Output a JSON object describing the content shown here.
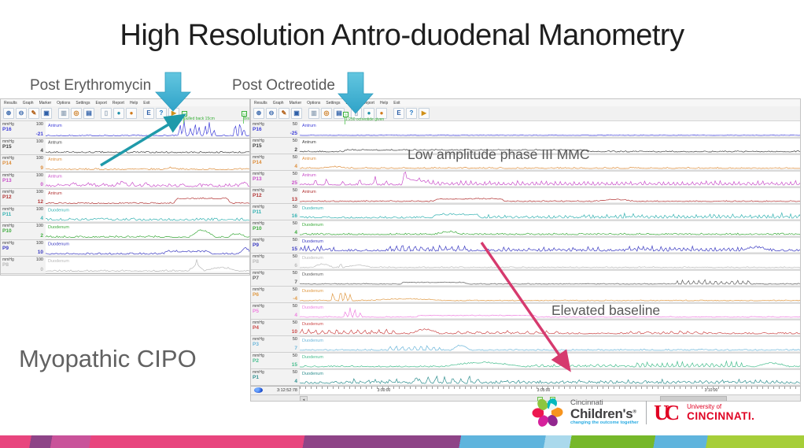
{
  "slide": {
    "title": "High Resolution Antro-duodenal Manometry",
    "left_caption": "Post Erythromycin",
    "right_caption": "Post Octreotide",
    "annotation_mmc": "Low amplitude phase III MMC",
    "annotation_baseline": "Elevated baseline",
    "diagnosis_label": "Myopathic CIPO"
  },
  "menu": {
    "items": [
      "Results",
      "Graph",
      "Marker",
      "Options",
      "Settings",
      "Export",
      "Report",
      "Help",
      "Exit"
    ]
  },
  "toolbar": {
    "icons": [
      {
        "name": "zoom-in-icon",
        "glyph": "⊕",
        "fg": "#2d5fa8"
      },
      {
        "name": "zoom-out-icon",
        "glyph": "⊖",
        "fg": "#2d5fa8"
      },
      {
        "name": "edit-icon",
        "glyph": "✎",
        "fg": "#b05a10"
      },
      {
        "name": "select-region-icon",
        "glyph": "▣",
        "fg": "#2d5fa8"
      },
      {
        "name": "pan-icon",
        "glyph": "▥",
        "fg": "#93a5b8"
      },
      {
        "name": "marker-tool-icon",
        "glyph": "◎",
        "fg": "#cc7a1e"
      },
      {
        "name": "table-icon",
        "glyph": "▤",
        "fg": "#2d5fa8"
      },
      {
        "name": "ruler-icon",
        "glyph": "▯",
        "fg": "#93a5b8"
      },
      {
        "name": "comment-icon",
        "glyph": "●",
        "fg": "#1f8fa8"
      },
      {
        "name": "comment-add-icon",
        "glyph": "●",
        "fg": "#d07818"
      },
      {
        "name": "export-doc-icon",
        "glyph": "E",
        "fg": "#2d5fa8"
      },
      {
        "name": "help-icon",
        "glyph": "?",
        "fg": "#1b74c4"
      },
      {
        "name": "report-icon",
        "glyph": "▶",
        "fg": "#d09018"
      }
    ]
  },
  "left_window": {
    "unit": "mmHg",
    "markers": [
      {
        "id": "11",
        "label": "pulled back 15cm"
      },
      {
        "id": "12",
        "label": "Bisac"
      }
    ],
    "channels": [
      {
        "id": "P16",
        "scale": "100",
        "value": "-21",
        "region": "Antrum",
        "color": "#4040d9"
      },
      {
        "id": "P15",
        "scale": "100",
        "value": "4",
        "region": "Antrum",
        "color": "#404040"
      },
      {
        "id": "P14",
        "scale": "100",
        "value": "9",
        "region": "Antrum",
        "color": "#dd8e3c"
      },
      {
        "id": "P13",
        "scale": "100",
        "value": "0",
        "region": "Antrum",
        "color": "#c94fc9"
      },
      {
        "id": "P12",
        "scale": "100",
        "value": "12",
        "region": "Antrum",
        "color": "#b23434"
      },
      {
        "id": "P11",
        "scale": "100",
        "value": "4",
        "region": "Duodenum",
        "color": "#35b2b2"
      },
      {
        "id": "P10",
        "scale": "100",
        "value": "2",
        "region": "Duodenum",
        "color": "#3cab3c"
      },
      {
        "id": "P9",
        "scale": "100",
        "value": "10",
        "region": "Duodenum",
        "color": "#3a3ac2"
      },
      {
        "id": "P8",
        "scale": "100",
        "value": "0",
        "region": "Duodenum",
        "color": "#b8b8b8"
      },
      {
        "id": "P7",
        "scale": "100",
        "value": "",
        "region": "Duodenum",
        "color": "#9a9a9a"
      }
    ]
  },
  "right_window": {
    "unit": "mmHg",
    "marker": {
      "id": "5",
      "label": "1:250 octreotide given"
    },
    "time_current": "3:12:52:78",
    "time_ticks": [
      "3:00:00",
      "3:05:00",
      "3:10:00"
    ],
    "channels": [
      {
        "id": "P16",
        "scale": "50",
        "value": "-25",
        "region": "Antrum",
        "color": "#4040d9"
      },
      {
        "id": "P15",
        "scale": "50",
        "value": "2",
        "region": "Antrum",
        "color": "#404040"
      },
      {
        "id": "P14",
        "scale": "50",
        "value": "4",
        "region": "Antrum",
        "color": "#dd8e3c"
      },
      {
        "id": "P13",
        "scale": "50",
        "value": "25",
        "region": "Antrum",
        "color": "#c94fc9"
      },
      {
        "id": "P12",
        "scale": "50",
        "value": "13",
        "region": "Antrum",
        "color": "#b23434"
      },
      {
        "id": "P11",
        "scale": "50",
        "value": "16",
        "region": "Duodenum",
        "color": "#35b2b2"
      },
      {
        "id": "P10",
        "scale": "50",
        "value": "4",
        "region": "Duodenum",
        "color": "#3cab3c"
      },
      {
        "id": "P9",
        "scale": "50",
        "value": "15",
        "region": "Duodenum",
        "color": "#3a3ac2"
      },
      {
        "id": "P8",
        "scale": "50",
        "value": "6",
        "region": "Duodenum",
        "color": "#bbbbbb"
      },
      {
        "id": "P7",
        "scale": "50",
        "value": "7",
        "region": "Duodenum",
        "color": "#5e5e5e"
      },
      {
        "id": "P6",
        "scale": "50",
        "value": "-4",
        "region": "Duodenum",
        "color": "#e09a45"
      },
      {
        "id": "P5",
        "scale": "50",
        "value": "4",
        "region": "Duodenum",
        "color": "#ef7fe0"
      },
      {
        "id": "P4",
        "scale": "50",
        "value": "10",
        "region": "Duodenum",
        "color": "#cc4848"
      },
      {
        "id": "P3",
        "scale": "50",
        "value": "7",
        "region": "Duodenum",
        "color": "#6cb6da"
      },
      {
        "id": "P2",
        "scale": "50",
        "value": "15",
        "region": "Duodenum",
        "color": "#45bd8d"
      },
      {
        "id": "P1",
        "scale": "50",
        "value": "4",
        "region": "Duodenum",
        "color": "#2f8f8f"
      }
    ]
  },
  "footer": {
    "childrens": {
      "line1": "Cincinnati",
      "line2": "Children's",
      "reg": "®",
      "tagline": "changing the outcome together"
    },
    "uc": {
      "monogram": "UC",
      "line1": "University of",
      "line2": "CINCINNATI."
    }
  },
  "colors": {
    "block_arrow": "#47b7d8",
    "block_arrow_edge": "#2e9cbd",
    "teal_arrow": "#1f9aaa",
    "pink_arrow": "#d63a6e",
    "marker_green": "#3ab03a",
    "band": [
      {
        "color": "#e8457e",
        "from": 0,
        "to": 3.9
      },
      {
        "color": "#8e4487",
        "from": 3.9,
        "to": 6.5
      },
      {
        "color": "#c9539a",
        "from": 6.5,
        "to": 11.3
      },
      {
        "color": "#e8457e",
        "from": 11.3,
        "to": 37.8
      },
      {
        "color": "#8e4487",
        "from": 37.8,
        "to": 57.2
      },
      {
        "color": "#5fb4dd",
        "from": 57.2,
        "to": 67.7
      },
      {
        "color": "#aad9ec",
        "from": 67.7,
        "to": 70.9
      },
      {
        "color": "#76b82a",
        "from": 70.9,
        "to": 81.3
      },
      {
        "color": "#5fb4dd",
        "from": 81.3,
        "to": 87.8
      },
      {
        "color": "#a6ce39",
        "from": 87.8,
        "to": 100
      }
    ]
  }
}
